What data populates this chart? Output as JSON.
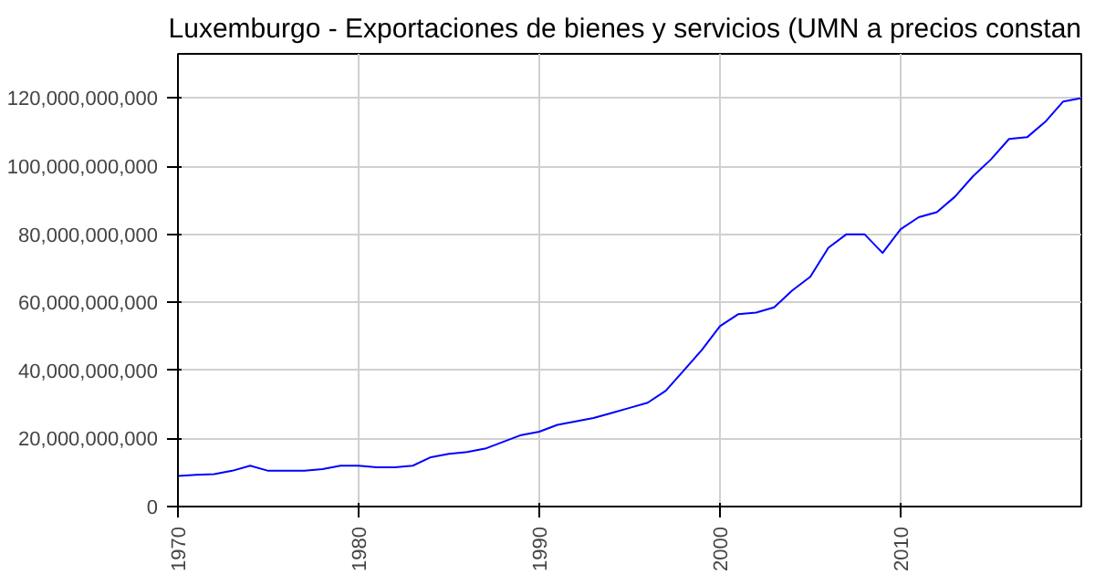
{
  "chart_data": {
    "type": "line",
    "title": "Luxemburgo - Exportaciones de bienes y servicios (UMN a precios constan",
    "x": [
      1970,
      1971,
      1972,
      1973,
      1974,
      1975,
      1976,
      1977,
      1978,
      1979,
      1980,
      1981,
      1982,
      1983,
      1984,
      1985,
      1986,
      1987,
      1988,
      1989,
      1990,
      1991,
      1992,
      1993,
      1994,
      1995,
      1996,
      1997,
      1998,
      1999,
      2000,
      2001,
      2002,
      2003,
      2004,
      2005,
      2006,
      2007,
      2008,
      2009,
      2010,
      2011,
      2012,
      2013,
      2014,
      2015,
      2016,
      2017,
      2018,
      2019,
      2020
    ],
    "series": [
      {
        "color": "#0000ff",
        "values": [
          9000000000,
          9300000000,
          9500000000,
          10500000000,
          12000000000,
          10500000000,
          10500000000,
          10500000000,
          11000000000,
          12000000000,
          12000000000,
          11500000000,
          11500000000,
          12000000000,
          14500000000,
          15500000000,
          16000000000,
          17000000000,
          19000000000,
          21000000000,
          22000000000,
          24000000000,
          25000000000,
          26000000000,
          27500000000,
          29000000000,
          30500000000,
          34000000000,
          40000000000,
          46000000000,
          53000000000,
          56500000000,
          57000000000,
          58500000000,
          63500000000,
          67500000000,
          76000000000,
          80000000000,
          80000000000,
          74500000000,
          81500000000,
          85000000000,
          86500000000,
          91000000000,
          97000000000,
          102000000000,
          108000000000,
          108500000000,
          113000000000,
          119000000000,
          120000000000
        ]
      }
    ],
    "xlim": [
      1970,
      2020
    ],
    "ylim": [
      0,
      133000000000
    ],
    "xticks": [
      1970,
      1980,
      1990,
      2000,
      2010
    ],
    "yticks": [
      {
        "value": 0,
        "label": "0"
      },
      {
        "value": 20000000000,
        "label": "20,000,000,000"
      },
      {
        "value": 40000000000,
        "label": "40,000,000,000"
      },
      {
        "value": 60000000000,
        "label": "60,000,000,000"
      },
      {
        "value": 80000000000,
        "label": "80,000,000,000"
      },
      {
        "value": 100000000000,
        "label": "100,000,000,000"
      },
      {
        "value": 120000000000,
        "label": "120,000,000,000"
      }
    ],
    "grid": true,
    "marker": "none",
    "line_style": "solid"
  }
}
